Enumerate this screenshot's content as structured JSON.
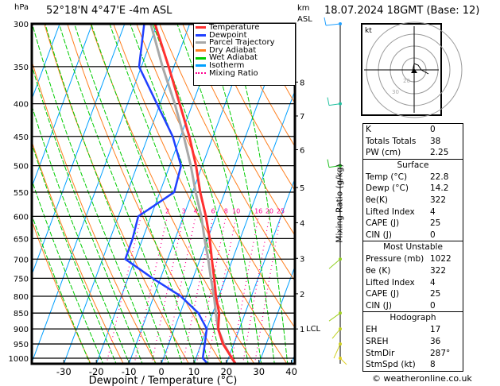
{
  "header": {
    "title": "52°18'N  4°47'E  -4m  ASL",
    "date": "18.07.2024  18GMT  (Base: 12)",
    "pressure_unit": "hPa",
    "height_unit": "km",
    "height_unit2": "ASL"
  },
  "legend": [
    {
      "label": "Temperature",
      "color": "#ff3030",
      "style": "solid"
    },
    {
      "label": "Dewpoint",
      "color": "#2040ff",
      "style": "solid"
    },
    {
      "label": "Parcel Trajectory",
      "color": "#a8a8a8",
      "style": "solid"
    },
    {
      "label": "Dry Adiabat",
      "color": "#ff8020",
      "style": "solid"
    },
    {
      "label": "Wet Adiabat",
      "color": "#00cc00",
      "style": "solid"
    },
    {
      "label": "Isotherm",
      "color": "#00a0ff",
      "style": "solid"
    },
    {
      "label": "Mixing Ratio",
      "color": "#ff0090",
      "style": "dotted"
    }
  ],
  "chart_data": {
    "type": "line",
    "title": "Skew-T log-P",
    "xlabel": "Dewpoint / Temperature (°C)",
    "ylabel": "hPa",
    "y2label": "Mixing Ratio (g/kg)",
    "xlim": [
      -40,
      40
    ],
    "ylim": [
      1035,
      300
    ],
    "x_ticks": [
      -30,
      -20,
      -10,
      0,
      10,
      20,
      30,
      40
    ],
    "y_ticks": [
      300,
      350,
      400,
      450,
      500,
      550,
      600,
      650,
      700,
      750,
      800,
      850,
      900,
      950,
      1000
    ],
    "km_ticks": [
      {
        "km": "8",
        "p": 370
      },
      {
        "km": "7",
        "p": 418
      },
      {
        "km": "6",
        "p": 472
      },
      {
        "km": "5",
        "p": 541
      },
      {
        "km": "4",
        "p": 614
      },
      {
        "km": "3",
        "p": 698
      },
      {
        "km": "2",
        "p": 793
      },
      {
        "km": "1",
        "p": 900
      }
    ],
    "lcl_label": "LCL",
    "lcl_p": 900,
    "mixing_ratio_labels": [
      "1",
      "2",
      "3",
      "4",
      "6",
      "8",
      "10",
      "16",
      "20",
      "25"
    ],
    "pressure": [
      1020,
      1000,
      950,
      900,
      850,
      800,
      750,
      700,
      650,
      600,
      550,
      500,
      450,
      400,
      350,
      300
    ],
    "series": [
      {
        "name": "Temperature",
        "values": [
          22.8,
          21.1,
          16.7,
          13.5,
          12,
          9.1,
          6.5,
          3.6,
          0.6,
          -3.1,
          -7.6,
          -11.9,
          -17.3,
          -24,
          -31.6,
          -40.7
        ]
      },
      {
        "name": "Dewpoint",
        "values": [
          14.2,
          12.1,
          11.1,
          10,
          5.6,
          -1.7,
          -12.4,
          -23,
          -23.1,
          -23.9,
          -15.6,
          -16.5,
          -22.4,
          -31,
          -40.7,
          -44
        ]
      },
      {
        "name": "Parcel Trajectory",
        "values": [
          22.8,
          21,
          17,
          13.5,
          11,
          8.5,
          5.5,
          2.5,
          -1,
          -4.5,
          -9,
          -13.5,
          -19,
          -25.5,
          -33.5,
          -42
        ]
      }
    ]
  },
  "indices": {
    "rows": [
      {
        "label": "K",
        "value": "0"
      },
      {
        "label": "Totals Totals",
        "value": "38"
      },
      {
        "label": "PW (cm)",
        "value": "2.25"
      }
    ],
    "surface": {
      "title": "Surface",
      "rows": [
        {
          "label": "Temp (°C)",
          "value": "22.8"
        },
        {
          "label": "Dewp (°C)",
          "value": "14.2"
        },
        {
          "label": "θe(K)",
          "value": "322"
        },
        {
          "label": "Lifted Index",
          "value": "4"
        },
        {
          "label": "CAPE (J)",
          "value": "25"
        },
        {
          "label": "CIN (J)",
          "value": "0"
        }
      ]
    },
    "most_unstable": {
      "title": "Most Unstable",
      "rows": [
        {
          "label": "Pressure (mb)",
          "value": "1022"
        },
        {
          "label": "θe (K)",
          "value": "322"
        },
        {
          "label": "Lifted Index",
          "value": "4"
        },
        {
          "label": "CAPE (J)",
          "value": "25"
        },
        {
          "label": "CIN (J)",
          "value": "0"
        }
      ]
    },
    "hodograph": {
      "title": "Hodograph",
      "rows": [
        {
          "label": "EH",
          "value": "17"
        },
        {
          "label": "SREH",
          "value": "36"
        },
        {
          "label": "StmDir",
          "value": "287°"
        },
        {
          "label": "StmSpd (kt)",
          "value": "8"
        }
      ]
    }
  },
  "hodo": {
    "unit": "kt",
    "ring_labels": [
      "10",
      "20",
      "30",
      "40"
    ]
  },
  "footer": "© weatheronline.co.uk"
}
